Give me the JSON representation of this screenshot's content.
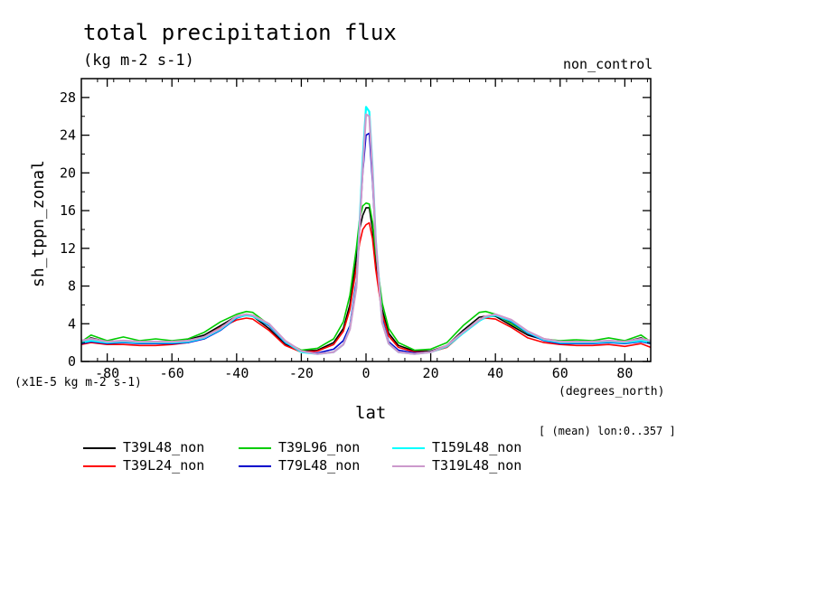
{
  "chart_data": {
    "type": "line",
    "title": "total precipitation flux",
    "units": "(kg m-2 s-1)",
    "experiment": "non_control",
    "ylabel": "sh_tppn_zonal",
    "xlabel": "lat",
    "x_units": "(degrees_north)",
    "y_scale_note": "(x1E-5 kg m-2 s-1)",
    "footnote": "[ (mean) lon:0..357 ]",
    "xlim": [
      -88,
      88
    ],
    "ylim": [
      0,
      30
    ],
    "x_ticks": [
      -80,
      -60,
      -40,
      -20,
      0,
      20,
      40,
      60,
      80
    ],
    "x_tick_labels": [
      "-80",
      "-60",
      "-40",
      "-20",
      "0",
      "20",
      "40",
      "60",
      "80"
    ],
    "y_ticks": [
      0,
      4,
      8,
      12,
      16,
      20,
      24,
      28
    ],
    "y_tick_labels": [
      "0",
      "4",
      "8",
      "12",
      "16",
      "20",
      "24",
      "28"
    ],
    "x": [
      -88,
      -85,
      -80,
      -75,
      -70,
      -65,
      -60,
      -55,
      -50,
      -45,
      -40,
      -37,
      -35,
      -30,
      -25,
      -20,
      -15,
      -10,
      -7,
      -5,
      -3,
      -2,
      -1,
      0,
      1,
      2,
      3,
      5,
      7,
      10,
      15,
      20,
      25,
      30,
      35,
      37,
      40,
      45,
      50,
      55,
      60,
      65,
      70,
      75,
      80,
      85,
      88
    ],
    "series": [
      {
        "name": "T39L48_non",
        "color": "#000000",
        "values": [
          2.0,
          2.5,
          2.1,
          2.2,
          2.0,
          2.1,
          2.1,
          2.3,
          2.8,
          3.8,
          4.8,
          4.9,
          4.8,
          3.5,
          1.8,
          1.1,
          1.2,
          2.0,
          3.5,
          6.0,
          11.0,
          14.0,
          15.5,
          16.3,
          16.3,
          14.0,
          10.5,
          5.5,
          3.0,
          1.7,
          1.1,
          1.1,
          1.7,
          3.3,
          4.7,
          4.8,
          4.8,
          3.8,
          2.8,
          2.3,
          2.1,
          2.1,
          2.0,
          2.1,
          2.1,
          2.5,
          2.0
        ]
      },
      {
        "name": "T39L24_non",
        "color": "#ff0000",
        "values": [
          1.8,
          2.0,
          1.8,
          1.8,
          1.7,
          1.7,
          1.8,
          2.0,
          2.6,
          3.6,
          4.4,
          4.6,
          4.5,
          3.3,
          1.7,
          1.0,
          1.1,
          1.8,
          3.2,
          5.5,
          10.0,
          12.5,
          14.0,
          14.5,
          14.7,
          13.0,
          9.8,
          5.0,
          2.7,
          1.5,
          1.0,
          1.0,
          1.5,
          3.0,
          4.4,
          4.6,
          4.5,
          3.6,
          2.5,
          2.0,
          1.8,
          1.7,
          1.7,
          1.8,
          1.6,
          1.9,
          1.5
        ]
      },
      {
        "name": "T39L96_non",
        "color": "#00cc00",
        "values": [
          2.1,
          2.8,
          2.2,
          2.6,
          2.2,
          2.4,
          2.2,
          2.4,
          3.1,
          4.2,
          5.0,
          5.3,
          5.2,
          3.9,
          2.1,
          1.2,
          1.4,
          2.4,
          4.2,
          7.0,
          12.0,
          15.0,
          16.5,
          16.8,
          16.7,
          14.8,
          11.5,
          6.2,
          3.5,
          2.0,
          1.2,
          1.3,
          2.0,
          3.8,
          5.2,
          5.3,
          5.0,
          4.0,
          3.0,
          2.4,
          2.2,
          2.3,
          2.2,
          2.5,
          2.2,
          2.8,
          2.1
        ]
      },
      {
        "name": "T79L48_non",
        "color": "#0000cc",
        "values": [
          1.9,
          2.1,
          1.9,
          2.0,
          1.9,
          1.9,
          1.9,
          2.0,
          2.4,
          3.3,
          4.6,
          4.9,
          4.8,
          3.8,
          2.0,
          1.0,
          0.9,
          1.3,
          2.2,
          3.8,
          8.5,
          14.0,
          20.0,
          24.0,
          24.2,
          19.0,
          12.5,
          4.5,
          2.1,
          1.2,
          0.9,
          1.0,
          1.6,
          3.0,
          4.3,
          4.7,
          4.9,
          4.2,
          3.0,
          2.2,
          1.9,
          1.9,
          1.9,
          2.0,
          1.9,
          2.1,
          1.9
        ]
      },
      {
        "name": "T159L48_non",
        "color": "#00ffff",
        "values": [
          2.0,
          2.2,
          2.0,
          2.1,
          2.0,
          2.0,
          2.0,
          2.1,
          2.5,
          3.4,
          4.7,
          4.9,
          4.8,
          3.9,
          2.1,
          1.0,
          0.8,
          1.0,
          1.8,
          3.5,
          8.0,
          14.5,
          21.5,
          27.0,
          26.5,
          20.5,
          13.0,
          4.2,
          1.9,
          1.0,
          0.8,
          1.0,
          1.6,
          3.0,
          4.3,
          4.7,
          4.9,
          4.3,
          3.1,
          2.3,
          2.0,
          2.0,
          2.0,
          2.1,
          2.0,
          2.2,
          2.0
        ]
      },
      {
        "name": "T319L48_non",
        "color": "#cc99cc",
        "values": [
          2.2,
          2.4,
          2.1,
          2.2,
          2.1,
          2.1,
          2.1,
          2.2,
          2.6,
          3.5,
          4.8,
          5.0,
          4.9,
          4.0,
          2.2,
          1.1,
          0.8,
          1.0,
          1.8,
          3.4,
          7.8,
          14.0,
          20.5,
          26.2,
          26.0,
          20.0,
          12.8,
          4.1,
          1.9,
          1.0,
          0.8,
          1.0,
          1.7,
          3.1,
          4.4,
          4.8,
          5.0,
          4.4,
          3.2,
          2.4,
          2.1,
          2.1,
          2.1,
          2.2,
          2.1,
          2.4,
          2.2
        ]
      }
    ],
    "legend": [
      {
        "label": "T39L48_non",
        "color": "#000000"
      },
      {
        "label": "T39L96_non",
        "color": "#00cc00"
      },
      {
        "label": "T159L48_non",
        "color": "#00ffff"
      },
      {
        "label": "T39L24_non",
        "color": "#ff0000"
      },
      {
        "label": "T79L48_non",
        "color": "#0000cc"
      },
      {
        "label": "T319L48_non",
        "color": "#cc99cc"
      }
    ]
  }
}
